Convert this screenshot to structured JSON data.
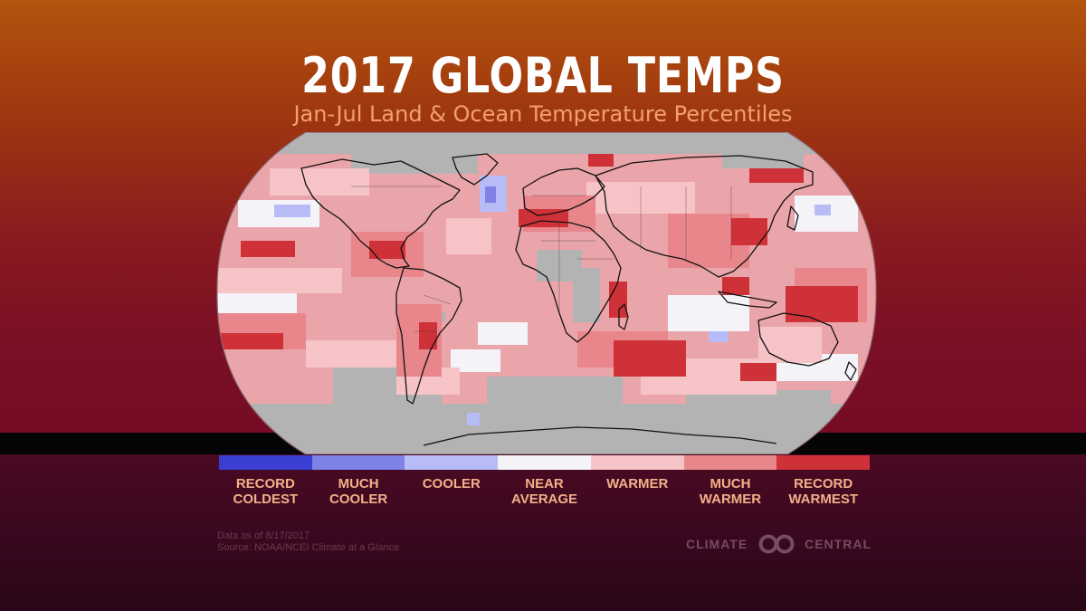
{
  "header": {
    "title": "2017 GLOBAL TEMPS",
    "subtitle": "Jan-Jul Land & Ocean Temperature Percentiles"
  },
  "legend": {
    "items": [
      {
        "label": "RECORD\nCOLDEST",
        "color": "#3a3ed2"
      },
      {
        "label": "MUCH\nCOOLER",
        "color": "#7e82e6"
      },
      {
        "label": "COOLER",
        "color": "#b8bcf6"
      },
      {
        "label": "NEAR\nAVERAGE",
        "color": "#f4f4f8"
      },
      {
        "label": "WARMER",
        "color": "#f6c4c6"
      },
      {
        "label": "MUCH\nWARMER",
        "color": "#e8868c"
      },
      {
        "label": "RECORD\nWARMEST",
        "color": "#cf3138"
      }
    ]
  },
  "footer": {
    "note_line1": "Data as of 8/17/2017",
    "note_line2": "Source: NOAA/NCEI Climate at a Glance",
    "brand_left": "CLIMATE",
    "brand_right": "CENTRAL"
  },
  "map_colors": {
    "nodata": "#b3b3b3",
    "base": "#eaa5aa",
    "record_warmest": "#cf3138",
    "much_warmer": "#e8868c",
    "warmer": "#f6c4c6",
    "near_average": "#f4f4f8",
    "cooler": "#b8bcf6",
    "much_cooler": "#7e82e6"
  }
}
